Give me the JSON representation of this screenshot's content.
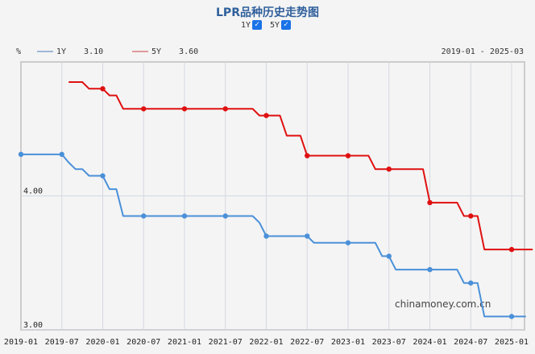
{
  "title": "LPR品种历史走势图",
  "toggles": [
    {
      "label": "1Y",
      "checked": true
    },
    {
      "label": "5Y",
      "checked": true
    }
  ],
  "legend": {
    "unit": "%",
    "items": [
      {
        "label": "1Y",
        "value": "3.10",
        "color": "#4a90d9"
      },
      {
        "label": "5Y",
        "value": "3.60",
        "color": "#e01010"
      }
    ],
    "range": "2019-01 - 2025-03"
  },
  "watermark": "chinamoney.com.cn",
  "chart_data": {
    "type": "line",
    "ylabel": "%",
    "ylim": [
      3.0,
      5.0
    ],
    "y_ticks": [
      "3.00",
      "4.00"
    ],
    "x_ticks": [
      "2019-01",
      "2019-07",
      "2020-01",
      "2020-07",
      "2021-01",
      "2021-07",
      "2022-01",
      "2022-07",
      "2023-01",
      "2023-07",
      "2024-01",
      "2024-07",
      "2025-01"
    ],
    "x_range": [
      "2019-01",
      "2025-03"
    ],
    "grid": true,
    "series": [
      {
        "name": "1Y",
        "color": "#4a90d9",
        "start": "2019-01",
        "values": [
          4.31,
          4.31,
          4.31,
          4.31,
          4.31,
          4.31,
          4.31,
          4.25,
          4.2,
          4.2,
          4.15,
          4.15,
          4.15,
          4.05,
          4.05,
          3.85,
          3.85,
          3.85,
          3.85,
          3.85,
          3.85,
          3.85,
          3.85,
          3.85,
          3.85,
          3.85,
          3.85,
          3.85,
          3.85,
          3.85,
          3.85,
          3.85,
          3.85,
          3.85,
          3.85,
          3.8,
          3.7,
          3.7,
          3.7,
          3.7,
          3.7,
          3.7,
          3.7,
          3.65,
          3.65,
          3.65,
          3.65,
          3.65,
          3.65,
          3.65,
          3.65,
          3.65,
          3.65,
          3.55,
          3.55,
          3.45,
          3.45,
          3.45,
          3.45,
          3.45,
          3.45,
          3.45,
          3.45,
          3.45,
          3.45,
          3.35,
          3.35,
          3.35,
          3.1,
          3.1,
          3.1,
          3.1,
          3.1,
          3.1,
          3.1
        ]
      },
      {
        "name": "5Y",
        "color": "#e01010",
        "start": "2019-08",
        "values": [
          4.85,
          4.85,
          4.85,
          4.8,
          4.8,
          4.8,
          4.75,
          4.75,
          4.65,
          4.65,
          4.65,
          4.65,
          4.65,
          4.65,
          4.65,
          4.65,
          4.65,
          4.65,
          4.65,
          4.65,
          4.65,
          4.65,
          4.65,
          4.65,
          4.65,
          4.65,
          4.65,
          4.65,
          4.6,
          4.6,
          4.6,
          4.6,
          4.45,
          4.45,
          4.45,
          4.3,
          4.3,
          4.3,
          4.3,
          4.3,
          4.3,
          4.3,
          4.3,
          4.3,
          4.3,
          4.2,
          4.2,
          4.2,
          4.2,
          4.2,
          4.2,
          4.2,
          4.2,
          3.95,
          3.95,
          3.95,
          3.95,
          3.95,
          3.85,
          3.85,
          3.85,
          3.6,
          3.6,
          3.6,
          3.6,
          3.6,
          3.6,
          3.6,
          3.6
        ]
      }
    ]
  }
}
